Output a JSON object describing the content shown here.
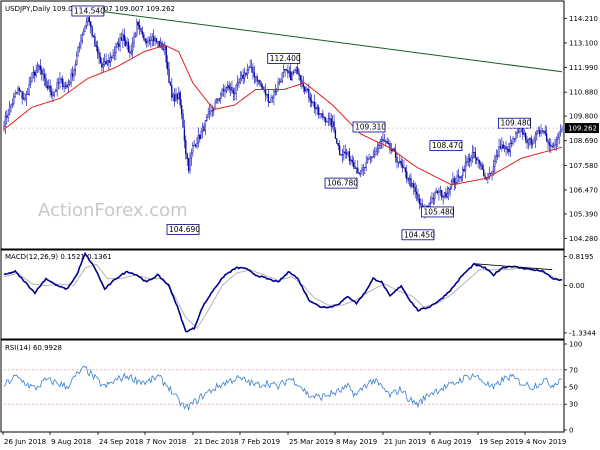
{
  "header": {
    "main": "USDJPY,Daily  109.035 109.307 109.007 109.262",
    "macd": "MACD(12,26,9) 0.1521 0.1361",
    "rsi": "RSI(14) 60.9928"
  },
  "watermark": "ActionForex.com",
  "colors": {
    "candle": "#0000aa",
    "ma": "#e0201c",
    "trendline": "#1a5a2a",
    "macd": "#00008b",
    "signal": "#b5b5b5",
    "rsi": "#3a7fd0",
    "rsi_level": "#e08080",
    "label_border": "#00008b",
    "current_price_bg": "#000000"
  },
  "chart_data": [
    {
      "type": "candlestick",
      "name": "price",
      "ylim": [
        103.9,
        114.9
      ],
      "yticks": [
        "114.210",
        "113.100",
        "111.990",
        "110.880",
        "109.800",
        "108.690",
        "107.580",
        "106.470",
        "105.390",
        "104.280"
      ],
      "xticks": [
        "26 Jun 2018",
        "9 Aug 2018",
        "24 Sep 2018",
        "7 Nov 2018",
        "21 Dec 2018",
        "7 Feb 2019",
        "25 Mar 2019",
        "8 May 2019",
        "21 Jun 2019",
        "6 Aug 2019",
        "19 Sep 2019",
        "4 Nov 2019"
      ],
      "current_price": "109.262",
      "close_anchors": [
        [
          0,
          109.5
        ],
        [
          5,
          110.3
        ],
        [
          10,
          111.0
        ],
        [
          15,
          110.5
        ],
        [
          20,
          111.6
        ],
        [
          25,
          112.0
        ],
        [
          30,
          111.2
        ],
        [
          35,
          110.8
        ],
        [
          40,
          111.4
        ],
        [
          45,
          111.1
        ],
        [
          50,
          111.9
        ],
        [
          55,
          113.3
        ],
        [
          60,
          114.3
        ],
        [
          65,
          113.0
        ],
        [
          70,
          112.0
        ],
        [
          75,
          112.3
        ],
        [
          80,
          112.8
        ],
        [
          85,
          113.5
        ],
        [
          90,
          112.6
        ],
        [
          95,
          113.9
        ],
        [
          100,
          113.2
        ],
        [
          105,
          113.4
        ],
        [
          110,
          113.1
        ],
        [
          115,
          112.8
        ],
        [
          120,
          110.6
        ],
        [
          125,
          110.7
        ],
        [
          128,
          109.4
        ],
        [
          130,
          108.2
        ],
        [
          132,
          107.5
        ],
        [
          135,
          108.4
        ],
        [
          140,
          108.9
        ],
        [
          145,
          109.6
        ],
        [
          150,
          110.2
        ],
        [
          155,
          110.8
        ],
        [
          160,
          111.1
        ],
        [
          165,
          110.9
        ],
        [
          170,
          111.5
        ],
        [
          175,
          112.0
        ],
        [
          180,
          111.6
        ],
        [
          185,
          111.0
        ],
        [
          190,
          110.5
        ],
        [
          195,
          111.1
        ],
        [
          200,
          111.8
        ],
        [
          205,
          111.6
        ],
        [
          210,
          111.9
        ],
        [
          215,
          111.1
        ],
        [
          220,
          110.5
        ],
        [
          225,
          109.9
        ],
        [
          230,
          109.7
        ],
        [
          235,
          109.4
        ],
        [
          240,
          108.2
        ],
        [
          245,
          108.1
        ],
        [
          250,
          107.7
        ],
        [
          255,
          107.2
        ],
        [
          260,
          107.7
        ],
        [
          265,
          108.1
        ],
        [
          270,
          108.7
        ],
        [
          275,
          108.4
        ],
        [
          280,
          108.0
        ],
        [
          285,
          107.4
        ],
        [
          290,
          106.9
        ],
        [
          295,
          106.2
        ],
        [
          300,
          105.4
        ],
        [
          305,
          106.0
        ],
        [
          310,
          106.4
        ],
        [
          315,
          106.2
        ],
        [
          320,
          106.8
        ],
        [
          325,
          107.0
        ],
        [
          330,
          107.6
        ],
        [
          335,
          108.1
        ],
        [
          340,
          107.6
        ],
        [
          345,
          107.0
        ],
        [
          350,
          107.5
        ],
        [
          355,
          108.5
        ],
        [
          360,
          108.2
        ],
        [
          365,
          108.8
        ],
        [
          370,
          109.2
        ],
        [
          375,
          108.6
        ],
        [
          380,
          108.8
        ],
        [
          385,
          109.3
        ],
        [
          390,
          108.5
        ],
        [
          395,
          108.7
        ],
        [
          399,
          109.262
        ]
      ],
      "moving_average_anchors": [
        [
          0,
          109.2
        ],
        [
          20,
          110.2
        ],
        [
          40,
          110.6
        ],
        [
          60,
          111.5
        ],
        [
          80,
          112.0
        ],
        [
          100,
          112.7
        ],
        [
          115,
          113.0
        ],
        [
          125,
          112.7
        ],
        [
          135,
          111.3
        ],
        [
          150,
          110.1
        ],
        [
          165,
          110.3
        ],
        [
          180,
          111.0
        ],
        [
          200,
          111.0
        ],
        [
          215,
          111.3
        ],
        [
          235,
          110.3
        ],
        [
          255,
          109.0
        ],
        [
          275,
          108.4
        ],
        [
          295,
          107.5
        ],
        [
          320,
          106.7
        ],
        [
          345,
          107.0
        ],
        [
          370,
          107.9
        ],
        [
          399,
          108.4
        ]
      ],
      "annotations": [
        {
          "text": "114.540",
          "index": 60,
          "price": 114.54
        },
        {
          "text": "104.690",
          "index": 128,
          "price": 104.69
        },
        {
          "text": "112.400",
          "index": 200,
          "price": 112.4
        },
        {
          "text": "109.310",
          "index": 261,
          "price": 109.31
        },
        {
          "text": "106.780",
          "index": 241,
          "price": 106.78
        },
        {
          "text": "104.450",
          "index": 296,
          "price": 104.45
        },
        {
          "text": "108.470",
          "index": 316,
          "price": 108.47
        },
        {
          "text": "105.480",
          "index": 310,
          "price": 105.48
        },
        {
          "text": "109.480",
          "index": 365,
          "price": 109.48
        }
      ],
      "trendline": [
        [
          60,
          114.6
        ],
        [
          399,
          111.8
        ]
      ]
    },
    {
      "type": "line",
      "name": "MACD(12,26,9)",
      "ylim": [
        -1.45,
        0.95
      ],
      "yticks": [
        "0.8195",
        "0.00",
        "-1.3344"
      ],
      "macd_anchors": [
        [
          0,
          0.3
        ],
        [
          8,
          0.4
        ],
        [
          15,
          0.1
        ],
        [
          22,
          -0.2
        ],
        [
          30,
          0.2
        ],
        [
          38,
          0.0
        ],
        [
          45,
          -0.1
        ],
        [
          52,
          0.3
        ],
        [
          58,
          0.9
        ],
        [
          65,
          0.5
        ],
        [
          72,
          -0.1
        ],
        [
          80,
          0.2
        ],
        [
          88,
          0.4
        ],
        [
          95,
          0.3
        ],
        [
          102,
          0.1
        ],
        [
          110,
          0.3
        ],
        [
          118,
          0.0
        ],
        [
          124,
          -0.6
        ],
        [
          130,
          -1.3
        ],
        [
          136,
          -1.2
        ],
        [
          142,
          -0.6
        ],
        [
          150,
          -0.1
        ],
        [
          158,
          0.3
        ],
        [
          166,
          0.5
        ],
        [
          172,
          0.5
        ],
        [
          180,
          0.3
        ],
        [
          188,
          0.2
        ],
        [
          196,
          0.1
        ],
        [
          204,
          0.4
        ],
        [
          210,
          0.2
        ],
        [
          218,
          -0.4
        ],
        [
          226,
          -0.6
        ],
        [
          234,
          -0.6
        ],
        [
          240,
          -0.5
        ],
        [
          246,
          -0.3
        ],
        [
          252,
          -0.5
        ],
        [
          258,
          -0.2
        ],
        [
          264,
          0.2
        ],
        [
          270,
          0.1
        ],
        [
          276,
          -0.3
        ],
        [
          284,
          0.0
        ],
        [
          290,
          -0.4
        ],
        [
          296,
          -0.7
        ],
        [
          304,
          -0.6
        ],
        [
          312,
          -0.4
        ],
        [
          320,
          -0.1
        ],
        [
          328,
          0.3
        ],
        [
          336,
          0.6
        ],
        [
          344,
          0.5
        ],
        [
          350,
          0.3
        ],
        [
          356,
          0.5
        ],
        [
          362,
          0.55
        ],
        [
          370,
          0.5
        ],
        [
          378,
          0.45
        ],
        [
          386,
          0.4
        ],
        [
          392,
          0.2
        ],
        [
          399,
          0.15
        ]
      ],
      "signal_anchors": [
        [
          0,
          0.25
        ],
        [
          10,
          0.35
        ],
        [
          20,
          0.05
        ],
        [
          30,
          0.0
        ],
        [
          40,
          0.05
        ],
        [
          50,
          0.0
        ],
        [
          58,
          0.5
        ],
        [
          66,
          0.6
        ],
        [
          74,
          0.2
        ],
        [
          84,
          0.2
        ],
        [
          94,
          0.3
        ],
        [
          104,
          0.2
        ],
        [
          114,
          0.2
        ],
        [
          122,
          -0.3
        ],
        [
          130,
          -0.9
        ],
        [
          138,
          -1.2
        ],
        [
          146,
          -0.7
        ],
        [
          156,
          0.0
        ],
        [
          166,
          0.35
        ],
        [
          176,
          0.45
        ],
        [
          186,
          0.3
        ],
        [
          196,
          0.15
        ],
        [
          206,
          0.25
        ],
        [
          214,
          0.0
        ],
        [
          222,
          -0.35
        ],
        [
          232,
          -0.55
        ],
        [
          242,
          -0.55
        ],
        [
          252,
          -0.4
        ],
        [
          262,
          -0.15
        ],
        [
          272,
          0.05
        ],
        [
          282,
          -0.15
        ],
        [
          292,
          -0.3
        ],
        [
          300,
          -0.6
        ],
        [
          310,
          -0.5
        ],
        [
          320,
          -0.25
        ],
        [
          330,
          0.1
        ],
        [
          340,
          0.45
        ],
        [
          350,
          0.45
        ],
        [
          360,
          0.45
        ],
        [
          370,
          0.5
        ],
        [
          380,
          0.45
        ],
        [
          390,
          0.3
        ],
        [
          399,
          0.14
        ]
      ],
      "trendline": [
        [
          336,
          0.62
        ],
        [
          392,
          0.45
        ]
      ]
    },
    {
      "type": "line",
      "name": "RSI(14)",
      "ylim": [
        0,
        100
      ],
      "yticks": [
        "100",
        "70",
        "50",
        "30",
        "0"
      ],
      "levels": [
        70,
        30
      ],
      "rsi_anchors": [
        [
          0,
          52
        ],
        [
          8,
          62
        ],
        [
          15,
          55
        ],
        [
          22,
          48
        ],
        [
          30,
          58
        ],
        [
          38,
          55
        ],
        [
          45,
          50
        ],
        [
          52,
          64
        ],
        [
          58,
          72
        ],
        [
          65,
          60
        ],
        [
          72,
          50
        ],
        [
          80,
          58
        ],
        [
          88,
          63
        ],
        [
          95,
          58
        ],
        [
          102,
          55
        ],
        [
          110,
          62
        ],
        [
          118,
          50
        ],
        [
          124,
          35
        ],
        [
          130,
          25
        ],
        [
          136,
          32
        ],
        [
          142,
          40
        ],
        [
          150,
          48
        ],
        [
          158,
          55
        ],
        [
          166,
          60
        ],
        [
          172,
          58
        ],
        [
          180,
          52
        ],
        [
          188,
          55
        ],
        [
          196,
          50
        ],
        [
          204,
          60
        ],
        [
          210,
          55
        ],
        [
          218,
          40
        ],
        [
          226,
          38
        ],
        [
          234,
          42
        ],
        [
          240,
          45
        ],
        [
          246,
          50
        ],
        [
          252,
          40
        ],
        [
          258,
          52
        ],
        [
          264,
          58
        ],
        [
          270,
          50
        ],
        [
          276,
          40
        ],
        [
          284,
          48
        ],
        [
          290,
          35
        ],
        [
          296,
          30
        ],
        [
          304,
          42
        ],
        [
          312,
          48
        ],
        [
          320,
          52
        ],
        [
          328,
          60
        ],
        [
          336,
          64
        ],
        [
          344,
          55
        ],
        [
          350,
          48
        ],
        [
          356,
          58
        ],
        [
          362,
          62
        ],
        [
          370,
          55
        ],
        [
          378,
          50
        ],
        [
          386,
          58
        ],
        [
          392,
          52
        ],
        [
          399,
          61
        ]
      ]
    }
  ]
}
